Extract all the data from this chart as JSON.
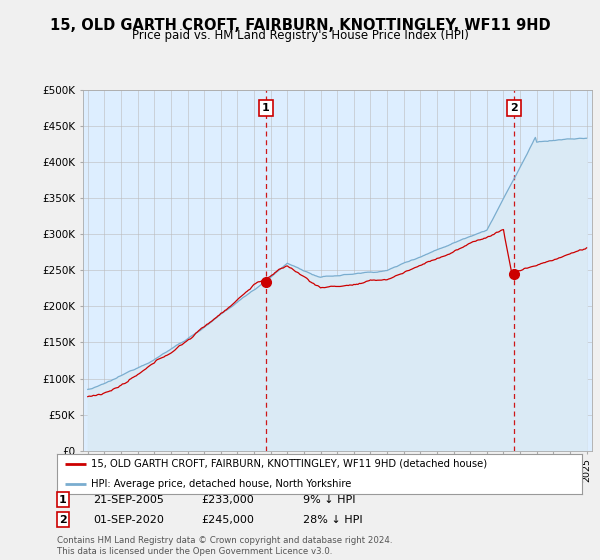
{
  "title": "15, OLD GARTH CROFT, FAIRBURN, KNOTTINGLEY, WF11 9HD",
  "subtitle": "Price paid vs. HM Land Registry's House Price Index (HPI)",
  "ylabel_ticks": [
    "£0",
    "£50K",
    "£100K",
    "£150K",
    "£200K",
    "£250K",
    "£300K",
    "£350K",
    "£400K",
    "£450K",
    "£500K"
  ],
  "ytick_vals": [
    0,
    50000,
    100000,
    150000,
    200000,
    250000,
    300000,
    350000,
    400000,
    450000,
    500000
  ],
  "ylim": [
    0,
    500000
  ],
  "xlim_start": 1994.7,
  "xlim_end": 2025.3,
  "sale1_year": 2005.72,
  "sale1_price": 233000,
  "sale1_label": "1",
  "sale1_date": "21-SEP-2005",
  "sale1_pct": "9% ↓ HPI",
  "sale2_year": 2020.66,
  "sale2_price": 245000,
  "sale2_label": "2",
  "sale2_date": "01-SEP-2020",
  "sale2_pct": "28% ↓ HPI",
  "line_color_red": "#cc0000",
  "line_color_blue": "#7aadcf",
  "fill_color_blue": "#daeaf5",
  "dashed_color": "#cc0000",
  "legend_label_red": "15, OLD GARTH CROFT, FAIRBURN, KNOTTINGLEY, WF11 9HD (detached house)",
  "legend_label_blue": "HPI: Average price, detached house, North Yorkshire",
  "footer": "Contains HM Land Registry data © Crown copyright and database right 2024.\nThis data is licensed under the Open Government Licence v3.0.",
  "background_color": "#f0f0f0",
  "plot_bg_color": "#ddeeff"
}
